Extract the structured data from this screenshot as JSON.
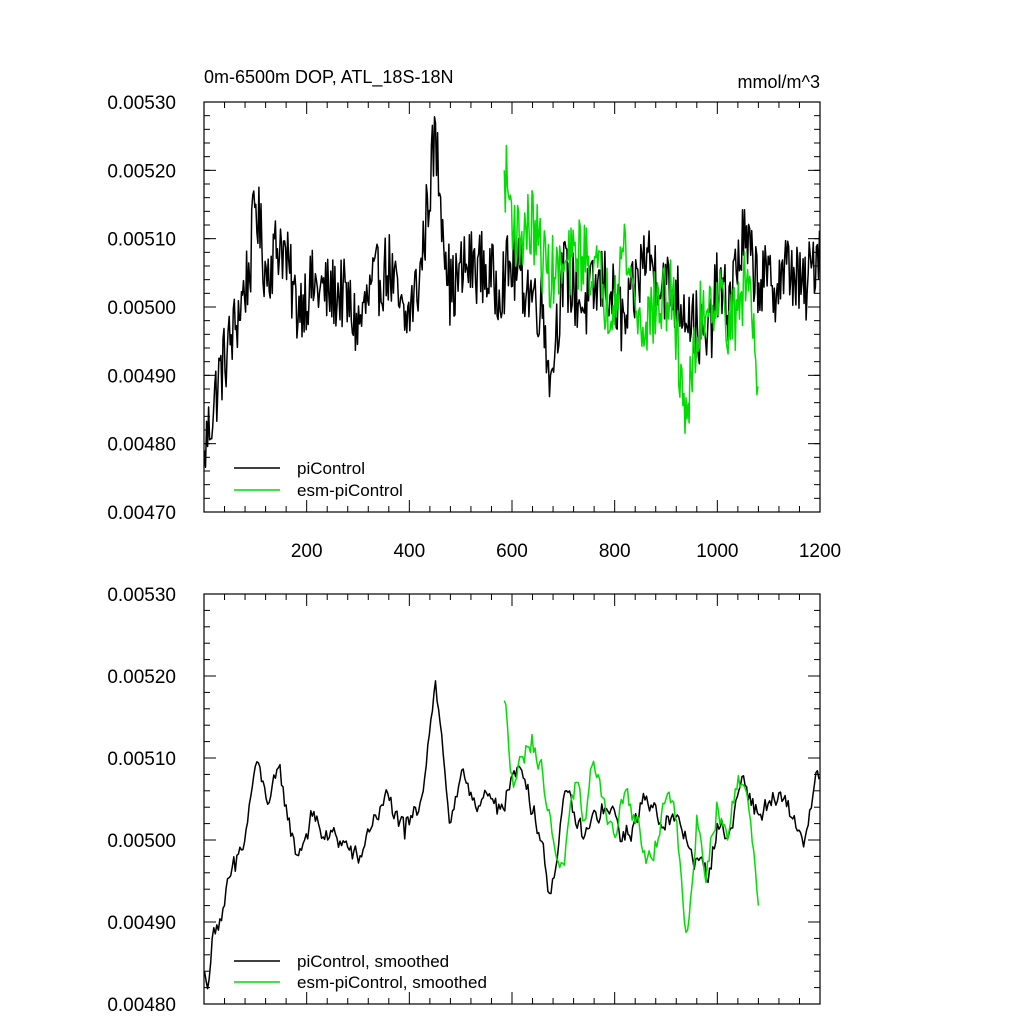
{
  "chart_data": [
    {
      "type": "line",
      "title": "0m-6500m DOP, ATL_18S-18N",
      "units": "mmol/m^3",
      "xlim": [
        0,
        1200
      ],
      "ylim": [
        0.0047,
        0.0053
      ],
      "yticks": [
        "0.00470",
        "0.00480",
        "0.00490",
        "0.00500",
        "0.00510",
        "0.00520",
        "0.00530"
      ],
      "xticks": [
        "200",
        "400",
        "600",
        "800",
        "1000",
        "1200"
      ],
      "legend_position": "bottom-left",
      "grid": false,
      "series": [
        {
          "name": "piControl",
          "color": "#000000",
          "x": [
            1,
            30,
            60,
            90,
            100,
            120,
            150,
            180,
            210,
            240,
            270,
            300,
            330,
            360,
            390,
            420,
            450,
            480,
            510,
            540,
            570,
            600,
            630,
            660,
            675,
            700,
            740,
            780,
            820,
            860,
            900,
            940,
            980,
            1000,
            1020,
            1050,
            1080,
            1110,
            1140,
            1170,
            1200
          ],
          "y": [
            0.00479,
            0.0049,
            0.00497,
            0.00506,
            0.00516,
            0.00505,
            0.0051,
            0.005,
            0.00503,
            0.00502,
            0.00502,
            0.00497,
            0.00503,
            0.00506,
            0.00497,
            0.00504,
            0.00525,
            0.00502,
            0.00506,
            0.00506,
            0.00503,
            0.00506,
            0.00503,
            0.005,
            0.0049,
            0.00505,
            0.005,
            0.00504,
            0.00497,
            0.00508,
            0.00503,
            0.005,
            0.00494,
            0.00503,
            0.005,
            0.0051,
            0.00504,
            0.00503,
            0.00506,
            0.00502,
            0.0051
          ]
        },
        {
          "name": "esm-piControl",
          "color": "#00dd00",
          "x": [
            585,
            610,
            640,
            670,
            700,
            730,
            760,
            790,
            820,
            850,
            880,
            910,
            940,
            970,
            1000,
            1030,
            1060,
            1080
          ],
          "y": [
            0.0052,
            0.0051,
            0.00512,
            0.00505,
            0.00505,
            0.00508,
            0.00506,
            0.005,
            0.00509,
            0.00497,
            0.005,
            0.00502,
            0.00484,
            0.005,
            0.00502,
            0.00497,
            0.00505,
            0.0049
          ]
        }
      ]
    },
    {
      "type": "line",
      "title": "",
      "xlim": [
        0,
        1200
      ],
      "ylim": [
        0.0048,
        0.0053
      ],
      "yticks": [
        "0.00480",
        "0.00490",
        "0.00500",
        "0.00510",
        "0.00520",
        "0.00530"
      ],
      "xticks": [],
      "legend_position": "bottom-left",
      "grid": false,
      "series": [
        {
          "name": "piControl, smoothed",
          "color": "#000000",
          "x": [
            1,
            10,
            20,
            40,
            60,
            80,
            100,
            120,
            150,
            180,
            210,
            240,
            270,
            300,
            330,
            360,
            390,
            420,
            450,
            480,
            510,
            540,
            570,
            600,
            630,
            660,
            675,
            700,
            740,
            780,
            820,
            860,
            900,
            940,
            980,
            1000,
            1020,
            1050,
            1080,
            1110,
            1140,
            1170,
            1200
          ],
          "y": [
            0.00484,
            0.00483,
            0.0049,
            0.00492,
            0.00496,
            0.005,
            0.00509,
            0.00505,
            0.00507,
            0.00498,
            0.00503,
            0.005,
            0.005,
            0.00497,
            0.00503,
            0.00505,
            0.005,
            0.00504,
            0.0052,
            0.00502,
            0.00507,
            0.00505,
            0.00503,
            0.00508,
            0.00507,
            0.005,
            0.00493,
            0.00505,
            0.005,
            0.00504,
            0.005,
            0.00505,
            0.00503,
            0.005,
            0.00495,
            0.00502,
            0.005,
            0.00508,
            0.00503,
            0.00505,
            0.00503,
            0.005,
            0.00508
          ]
        },
        {
          "name": "esm-piControl, smoothed",
          "color": "#00dd00",
          "x": [
            585,
            600,
            620,
            640,
            660,
            680,
            700,
            720,
            740,
            760,
            780,
            800,
            820,
            840,
            860,
            880,
            900,
            920,
            940,
            960,
            980,
            1000,
            1020,
            1040,
            1060,
            1080
          ],
          "y": [
            0.00517,
            0.00508,
            0.0051,
            0.00513,
            0.00508,
            0.005,
            0.00497,
            0.00505,
            0.00502,
            0.0051,
            0.00505,
            0.005,
            0.00506,
            0.00502,
            0.00497,
            0.005,
            0.00505,
            0.00503,
            0.00488,
            0.00503,
            0.00497,
            0.00505,
            0.005,
            0.00508,
            0.00505,
            0.00492
          ]
        }
      ]
    }
  ]
}
